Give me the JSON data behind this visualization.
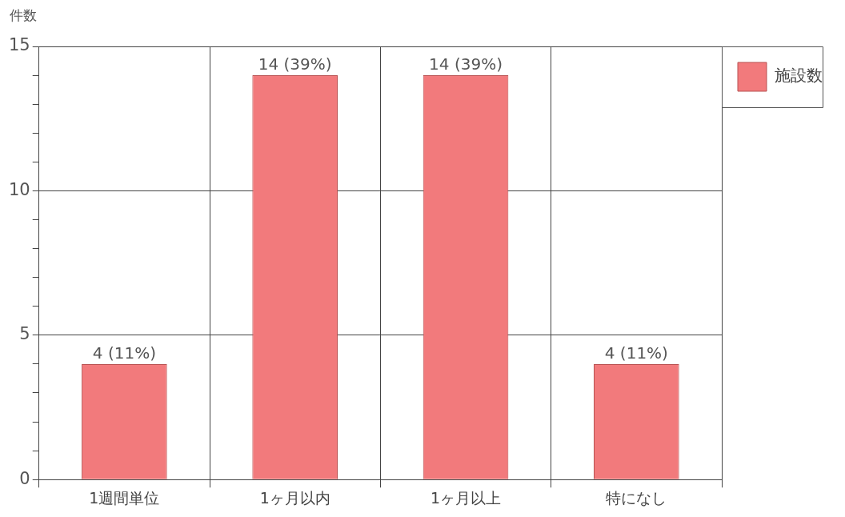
{
  "chart_data": {
    "type": "bar",
    "ylabel": "件数",
    "categories": [
      "1週間単位",
      "1ヶ月以内",
      "1ヶ月以上",
      "特になし"
    ],
    "series": [
      {
        "name": "施設数",
        "color": "#f27a7c",
        "values": [
          4,
          14,
          14,
          4
        ],
        "value_labels": [
          "4 (11%)",
          "14 (39%)",
          "14 (39%)",
          "4 (11%)"
        ]
      }
    ],
    "ylim": [
      0,
      15
    ],
    "yticks": [
      0,
      {
        "value": 1,
        "label": null
      },
      {
        "value": 2,
        "label": null
      },
      {
        "value": 3,
        "label": null
      },
      {
        "value": 4,
        "label": null
      },
      5,
      {
        "value": 6,
        "label": null
      },
      {
        "value": 7,
        "label": null
      },
      {
        "value": 8,
        "label": null
      },
      {
        "value": 9,
        "label": null
      },
      10,
      {
        "value": 11,
        "label": null
      },
      {
        "value": 12,
        "label": null
      },
      {
        "value": 13,
        "label": null
      },
      {
        "value": 14,
        "label": null
      },
      15
    ],
    "grid": true,
    "legend": "top right"
  }
}
